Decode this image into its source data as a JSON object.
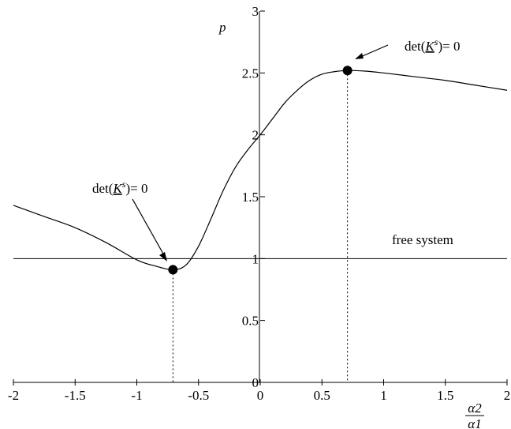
{
  "chart_data": {
    "type": "line",
    "title": "",
    "xlabel_num": "α2",
    "xlabel_den": "α1",
    "ylabel": "p",
    "xlim": [
      -2,
      2
    ],
    "ylim": [
      0,
      3
    ],
    "xticks": [
      -2,
      -1.5,
      -1,
      -0.5,
      0,
      0.5,
      1,
      1.5,
      2
    ],
    "xtick_labels": [
      "-2",
      "-1.5",
      "-1",
      "-0.5",
      "0",
      "0.5",
      "1",
      "1.5",
      "2"
    ],
    "yticks": [
      0,
      0.5,
      1,
      1.5,
      2,
      2.5,
      3
    ],
    "ytick_labels": [
      "0",
      "0.5",
      "1",
      "1.5",
      "2",
      "2.5",
      "3"
    ],
    "grid": false,
    "reference_line": {
      "y": 1,
      "label": "free system"
    },
    "series": [
      {
        "x": [
          -2,
          -1.75,
          -1.5,
          -1.25,
          -1.0,
          -0.85,
          -0.707,
          -0.6,
          -0.5,
          -0.4,
          -0.3,
          -0.2,
          -0.1,
          0,
          0.1,
          0.2,
          0.3,
          0.4,
          0.5,
          0.6,
          0.707,
          0.85,
          1.0,
          1.25,
          1.5,
          1.75,
          2
        ],
        "y": [
          1.43,
          1.34,
          1.25,
          1.13,
          0.99,
          0.94,
          0.91,
          0.95,
          1.1,
          1.32,
          1.55,
          1.74,
          1.88,
          2.0,
          2.13,
          2.26,
          2.36,
          2.44,
          2.49,
          2.51,
          2.52,
          2.515,
          2.5,
          2.47,
          2.44,
          2.4,
          2.36
        ]
      }
    ],
    "points": [
      {
        "x": -0.707,
        "y": 0.91
      },
      {
        "x": 0.707,
        "y": 2.52
      }
    ],
    "annotations": [
      {
        "text_pre": "det(",
        "text_K": "K",
        "text_sup": "s",
        "text_post": ")= 0"
      },
      {
        "text_pre": "det(",
        "text_K": "K",
        "text_sup": "s",
        "text_post": ")= 0"
      }
    ]
  }
}
